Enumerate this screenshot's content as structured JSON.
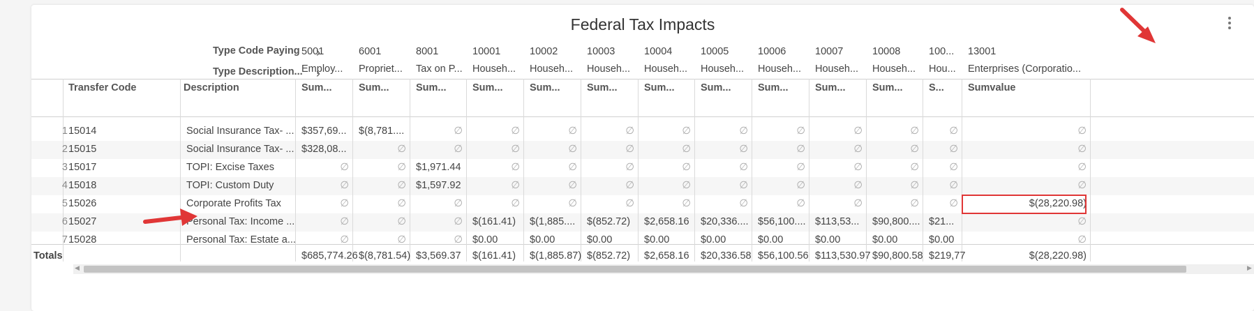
{
  "title": "Federal Tax Impacts",
  "header": {
    "type_code_label": "Type Code Paying",
    "type_desc_label": "Type Description...",
    "transfer_code_label": "Transfer Code",
    "description_label": "Description"
  },
  "columns": [
    {
      "code": "5001",
      "desc": "Employ...",
      "agg": "Sum..."
    },
    {
      "code": "6001",
      "desc": "Propriet...",
      "agg": "Sum..."
    },
    {
      "code": "8001",
      "desc": "Tax on P...",
      "agg": "Sum..."
    },
    {
      "code": "10001",
      "desc": "Househ...",
      "agg": "Sum..."
    },
    {
      "code": "10002",
      "desc": "Househ...",
      "agg": "Sum..."
    },
    {
      "code": "10003",
      "desc": "Househ...",
      "agg": "Sum..."
    },
    {
      "code": "10004",
      "desc": "Househ...",
      "agg": "Sum..."
    },
    {
      "code": "10005",
      "desc": "Househ...",
      "agg": "Sum..."
    },
    {
      "code": "10006",
      "desc": "Househ...",
      "agg": "Sum..."
    },
    {
      "code": "10007",
      "desc": "Househ...",
      "agg": "Sum..."
    },
    {
      "code": "10008",
      "desc": "Househ...",
      "agg": "Sum..."
    },
    {
      "code": "100...",
      "desc": "Hou...",
      "agg": "S..."
    },
    {
      "code": "13001",
      "desc": "Enterprises (Corporatio...",
      "agg": "Sumvalue"
    }
  ],
  "rows": [
    {
      "num": "1",
      "code": "15014",
      "desc": "Social Insurance Tax- ...",
      "vals": [
        "$357,69...",
        "$(8,781....",
        "∅",
        "∅",
        "∅",
        "∅",
        "∅",
        "∅",
        "∅",
        "∅",
        "∅",
        "∅",
        "∅"
      ]
    },
    {
      "num": "2",
      "code": "15015",
      "desc": "Social Insurance Tax- ...",
      "vals": [
        "$328,08...",
        "∅",
        "∅",
        "∅",
        "∅",
        "∅",
        "∅",
        "∅",
        "∅",
        "∅",
        "∅",
        "∅",
        "∅"
      ]
    },
    {
      "num": "3",
      "code": "15017",
      "desc": "TOPI: Excise Taxes",
      "vals": [
        "∅",
        "∅",
        "$1,971.44",
        "∅",
        "∅",
        "∅",
        "∅",
        "∅",
        "∅",
        "∅",
        "∅",
        "∅",
        "∅"
      ]
    },
    {
      "num": "4",
      "code": "15018",
      "desc": "TOPI: Custom Duty",
      "vals": [
        "∅",
        "∅",
        "$1,597.92",
        "∅",
        "∅",
        "∅",
        "∅",
        "∅",
        "∅",
        "∅",
        "∅",
        "∅",
        "∅"
      ]
    },
    {
      "num": "5",
      "code": "15026",
      "desc": "Corporate Profits Tax",
      "vals": [
        "∅",
        "∅",
        "∅",
        "∅",
        "∅",
        "∅",
        "∅",
        "∅",
        "∅",
        "∅",
        "∅",
        "∅",
        "$(28,220.98)"
      ]
    },
    {
      "num": "6",
      "code": "15027",
      "desc": "Personal Tax: Income ...",
      "vals": [
        "∅",
        "∅",
        "∅",
        "$(161.41)",
        "$(1,885....",
        "$(852.72)",
        "$2,658.16",
        "$20,336....",
        "$56,100....",
        "$113,53...",
        "$90,800....",
        "$21...",
        "∅"
      ]
    },
    {
      "num": "7",
      "code": "15028",
      "desc": "Personal Tax: Estate a...",
      "vals": [
        "∅",
        "∅",
        "∅",
        "$0.00",
        "$0.00",
        "$0.00",
        "$0.00",
        "$0.00",
        "$0.00",
        "$0.00",
        "$0.00",
        "$0.00",
        "∅"
      ]
    }
  ],
  "totals": {
    "label": "Totals",
    "vals": [
      "$685,774.26",
      "$(8,781.54)",
      "$3,569.37",
      "$(161.41)",
      "$(1,885.87)",
      "$(852.72)",
      "$2,658.16",
      "$20,336.58",
      "$56,100.56",
      "$113,530.97",
      "$90,800.58",
      "$219,77",
      "$(28,220.98)"
    ]
  },
  "colors": {
    "annotation": "#e03636",
    "header_text": "#555555"
  }
}
